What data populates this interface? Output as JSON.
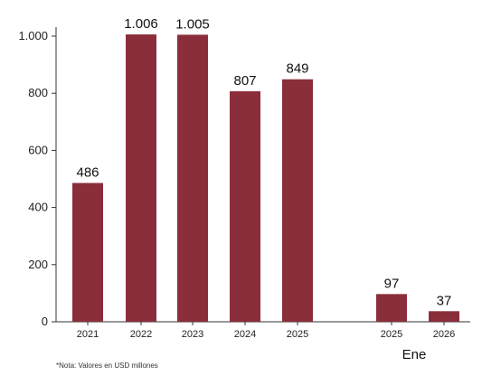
{
  "chart_data": {
    "type": "bar",
    "categories": [
      "2021",
      "2022",
      "2023",
      "2024",
      "2025",
      "2025",
      "2026"
    ],
    "values": [
      486,
      1006,
      1005,
      807,
      849,
      97,
      37
    ],
    "data_labels": [
      "486",
      "1.006",
      "1.005",
      "807",
      "849",
      "97",
      "37"
    ],
    "yticks": [
      0,
      200,
      400,
      600,
      800,
      1000
    ],
    "ytick_labels": [
      "0",
      "200",
      "400",
      "600",
      "800",
      "1.000"
    ],
    "ylim": [
      0,
      1100
    ],
    "group_label": "Ene",
    "grid": false,
    "bar_color": "#8b2e3b",
    "title": "",
    "xlabel": "",
    "ylabel": ""
  },
  "note": "*Nota: Valores en USD millones"
}
